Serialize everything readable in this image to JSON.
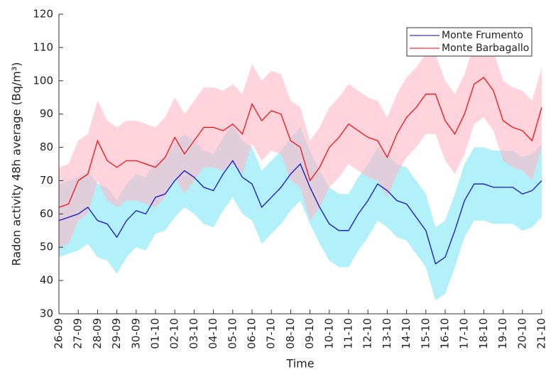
{
  "chart_data": {
    "type": "line",
    "x_label": "Time",
    "y_label": "Radon activity 48h average (Bq/m³)",
    "categories": [
      "26-09",
      null,
      "27-09",
      null,
      "28-09",
      null,
      "29-09",
      null,
      "30-09",
      null,
      "01-10",
      null,
      "02-10",
      null,
      "03-10",
      null,
      "04-10",
      null,
      "05-10",
      null,
      "06-10",
      null,
      "07-10",
      null,
      "08-10",
      null,
      "09-10",
      null,
      "10-10",
      null,
      "11-10",
      null,
      "12-10",
      null,
      "13-10",
      null,
      "14-10",
      null,
      "15-10",
      null,
      "16-10",
      null,
      "17-10",
      null,
      "18-10",
      null,
      "19-10",
      null,
      "20-10",
      null,
      "21-10"
    ],
    "ylim": [
      30,
      120
    ],
    "yticks": [
      30,
      40,
      50,
      60,
      70,
      80,
      90,
      100,
      110,
      120
    ],
    "legend": "upper right",
    "series": [
      {
        "name": "Monte Frumento",
        "color": "#0000cc",
        "band_color": "#7fe8f7",
        "values": [
          58,
          59,
          60,
          62,
          58,
          57,
          53,
          58,
          61,
          60,
          65,
          66,
          70,
          73,
          71,
          68,
          67,
          72,
          76,
          71,
          69,
          62,
          65,
          68,
          72,
          75,
          68,
          62,
          57,
          55,
          55,
          60,
          64,
          69,
          67,
          64,
          63,
          59,
          55,
          45,
          47,
          55,
          64,
          69,
          69,
          68,
          68,
          68,
          66,
          67,
          70
        ],
        "lower": [
          47,
          48,
          49,
          51,
          47,
          46,
          42,
          47,
          50,
          49,
          54,
          55,
          59,
          62,
          60,
          57,
          56,
          61,
          65,
          60,
          58,
          51,
          54,
          57,
          61,
          64,
          57,
          51,
          46,
          44,
          44,
          49,
          53,
          58,
          56,
          53,
          52,
          48,
          44,
          34,
          36,
          44,
          53,
          58,
          58,
          57,
          57,
          57,
          55,
          56,
          59
        ],
        "upper": [
          69,
          70,
          71,
          73,
          69,
          68,
          64,
          69,
          72,
          71,
          76,
          77,
          81,
          84,
          82,
          79,
          78,
          83,
          87,
          82,
          80,
          73,
          76,
          79,
          83,
          86,
          79,
          73,
          68,
          66,
          66,
          71,
          75,
          80,
          78,
          75,
          74,
          70,
          66,
          56,
          58,
          66,
          75,
          80,
          80,
          79,
          79,
          79,
          77,
          78,
          81
        ]
      },
      {
        "name": "Monte Barbagallo",
        "color": "#ff0000",
        "band_color": "#ffb8c4",
        "values": [
          62,
          63,
          70,
          72,
          82,
          76,
          74,
          76,
          76,
          75,
          74,
          77,
          83,
          78,
          82,
          86,
          86,
          85,
          87,
          84,
          93,
          88,
          91,
          90,
          82,
          80,
          70,
          74,
          80,
          83,
          87,
          85,
          83,
          82,
          77,
          84,
          89,
          92,
          96,
          96,
          88,
          84,
          90,
          99,
          101,
          97,
          88,
          86,
          85,
          82,
          92
        ],
        "lower": [
          50,
          51,
          58,
          60,
          70,
          64,
          62,
          64,
          64,
          63,
          62,
          65,
          71,
          66,
          70,
          74,
          74,
          73,
          75,
          72,
          81,
          76,
          79,
          78,
          70,
          68,
          58,
          62,
          68,
          71,
          75,
          73,
          71,
          70,
          65,
          72,
          77,
          80,
          84,
          84,
          76,
          72,
          78,
          87,
          89,
          85,
          76,
          74,
          73,
          70,
          80
        ],
        "upper": [
          74,
          75,
          82,
          84,
          94,
          88,
          86,
          88,
          88,
          87,
          86,
          89,
          95,
          90,
          94,
          98,
          98,
          97,
          99,
          96,
          105,
          100,
          103,
          102,
          94,
          92,
          82,
          86,
          92,
          95,
          99,
          97,
          95,
          94,
          89,
          96,
          101,
          104,
          108,
          108,
          100,
          96,
          102,
          111,
          113,
          109,
          100,
          98,
          97,
          94,
          104
        ]
      }
    ]
  }
}
